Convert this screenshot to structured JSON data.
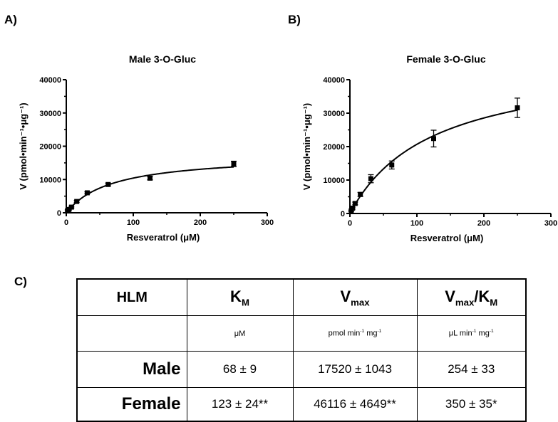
{
  "panel_labels": [
    "A)",
    "B)",
    "C)"
  ],
  "chart_data": [
    {
      "type": "scatter",
      "title": "Male 3-O-Gluc",
      "xlabel": "Resveratrol (μM)",
      "ylabel": "V (pmol•min⁻¹•μg⁻¹)",
      "xlim": [
        0,
        300
      ],
      "ylim": [
        0,
        40000
      ],
      "xticks": [
        "0",
        "100",
        "200",
        "300"
      ],
      "yticks": [
        "0",
        "10000",
        "20000",
        "30000",
        "40000"
      ],
      "points": [
        {
          "x": 2,
          "y": 700,
          "err": 200
        },
        {
          "x": 4,
          "y": 1000,
          "err": 200
        },
        {
          "x": 7.8,
          "y": 1700,
          "err": 250
        },
        {
          "x": 15.6,
          "y": 3400,
          "err": 300
        },
        {
          "x": 31.3,
          "y": 6000,
          "err": 300
        },
        {
          "x": 62.5,
          "y": 8500,
          "err": 400
        },
        {
          "x": 125,
          "y": 10400,
          "err": 500
        },
        {
          "x": 250,
          "y": 14700,
          "err": 800
        }
      ],
      "fit": {
        "model": "Michaelis-Menten",
        "Vmax": 17520,
        "Km": 68
      }
    },
    {
      "type": "scatter",
      "title": "Female 3-O-Gluc",
      "xlabel": "Resveratrol (μM)",
      "ylabel": "V (pmol•min⁻¹•μg⁻¹)",
      "xlim": [
        0,
        300
      ],
      "ylim": [
        0,
        40000
      ],
      "xticks": [
        "0",
        "100",
        "200",
        "300"
      ],
      "yticks": [
        "0",
        "10000",
        "20000",
        "30000",
        "40000"
      ],
      "points": [
        {
          "x": 2,
          "y": 800,
          "err": 200
        },
        {
          "x": 4,
          "y": 1600,
          "err": 300
        },
        {
          "x": 7.8,
          "y": 3000,
          "err": 400
        },
        {
          "x": 15.6,
          "y": 5700,
          "err": 600
        },
        {
          "x": 31.3,
          "y": 10400,
          "err": 1200
        },
        {
          "x": 62.5,
          "y": 14500,
          "err": 1200
        },
        {
          "x": 125,
          "y": 22400,
          "err": 2500
        },
        {
          "x": 250,
          "y": 31600,
          "err": 2900
        }
      ],
      "fit": {
        "model": "Michaelis-Menten",
        "Vmax": 46116,
        "Km": 123
      }
    }
  ],
  "table": {
    "header": {
      "hlm": "HLM",
      "km": "K",
      "km_sub": "M",
      "vmax": "V",
      "vmax_sub": "max",
      "ratio_v": "V",
      "ratio_v_sub": "max",
      "ratio_k": "/K",
      "ratio_k_sub": "M"
    },
    "units": {
      "km": "μM",
      "vmax_a": "pmol min",
      "vmax_a_sup": "-1",
      "vmax_b": " mg",
      "vmax_b_sup": "-1",
      "ratio_a": "μL min",
      "ratio_a_sup": "-1",
      "ratio_b": " mg",
      "ratio_b_sup": "-1"
    },
    "rows": [
      {
        "label": "Male",
        "km": "68 ± 9",
        "vmax": "17520 ± 1043",
        "ratio": "254 ± 33"
      },
      {
        "label": "Female",
        "km": "123 ± 24**",
        "vmax": "46116 ± 4649**",
        "ratio": "350 ± 35*"
      }
    ]
  }
}
